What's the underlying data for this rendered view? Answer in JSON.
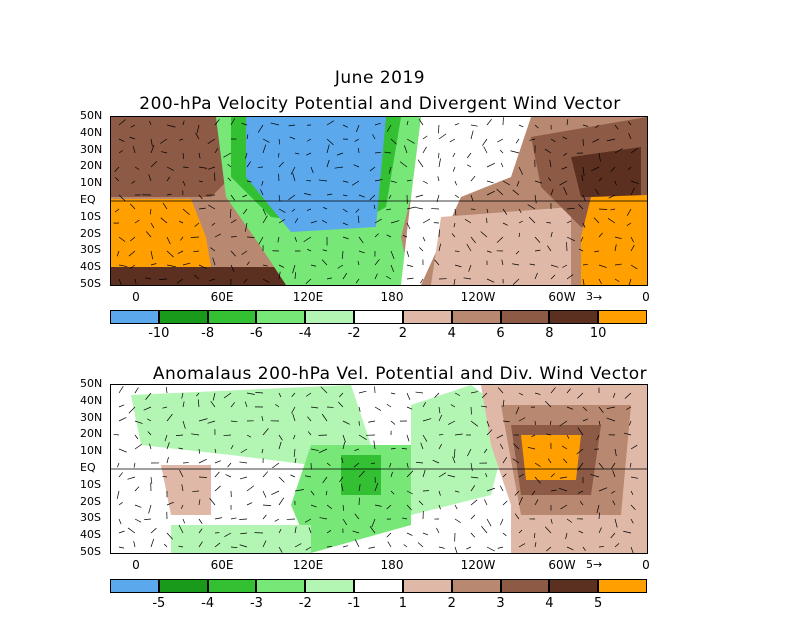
{
  "figure": {
    "title": "June 2019",
    "top_panel": {
      "title": "200-hPa Velocity Potential and Divergent Wind Vector",
      "vector_ref": "3",
      "colorbar": {
        "labels": [
          "-10",
          "-8",
          "-6",
          "-4",
          "-2",
          "2",
          "4",
          "6",
          "8",
          "10"
        ],
        "colors": [
          "#5ba8ec",
          "#1a9a1a",
          "#33c033",
          "#77e877",
          "#b3f5b3",
          "#ffffff",
          "#e0b8a8",
          "#b88870",
          "#8c5a45",
          "#5c3020",
          "#ffa000"
        ]
      }
    },
    "bottom_panel": {
      "title": "Anomalaus 200-hPa Vel. Potential and Div. Wind Vector",
      "vector_ref": "5",
      "colorbar": {
        "labels": [
          "-5",
          "-4",
          "-3",
          "-2",
          "-1",
          "1",
          "2",
          "3",
          "4",
          "5"
        ],
        "colors": [
          "#5ba8ec",
          "#1a9a1a",
          "#33c033",
          "#77e877",
          "#b3f5b3",
          "#ffffff",
          "#e0b8a8",
          "#b88870",
          "#8c5a45",
          "#5c3020",
          "#ffa000"
        ]
      }
    },
    "lat_labels": [
      "50N",
      "40N",
      "30N",
      "20N",
      "10N",
      "EQ",
      "10S",
      "20S",
      "30S",
      "40S",
      "50S"
    ],
    "lon_labels": [
      "0",
      "60E",
      "120E",
      "180",
      "120W",
      "60W",
      "0"
    ]
  }
}
